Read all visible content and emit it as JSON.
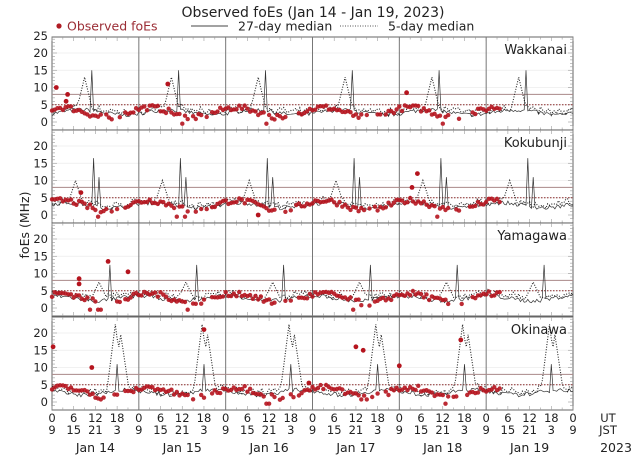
{
  "chart_data": {
    "type": "scatter",
    "title": "Observed foEs (Jan 14 - Jan 19, 2023)",
    "ylabel": "foEs (MHz)",
    "ylim": [
      -2,
      25
    ],
    "yticks": [
      0,
      5,
      10,
      15,
      20,
      25
    ],
    "legend": {
      "placement": "top",
      "entries": [
        {
          "label": "Observed foEs",
          "style": "red-dots"
        },
        {
          "label": "27-day median",
          "style": "solid-line"
        },
        {
          "label": "5-day median",
          "style": "dotted-line"
        }
      ]
    },
    "reference_lines": {
      "solid": 8,
      "dotted": 5
    },
    "x_ticks_ut": [
      "0",
      "6",
      "12",
      "18",
      "0",
      "6",
      "12",
      "18",
      "0",
      "6",
      "12",
      "18",
      "0",
      "6",
      "12",
      "18",
      "0",
      "6",
      "12",
      "18",
      "0",
      "6",
      "12",
      "18",
      "0"
    ],
    "x_ticks_jst": [
      "9",
      "15",
      "21",
      "3",
      "9",
      "15",
      "21",
      "3",
      "9",
      "15",
      "21",
      "3",
      "9",
      "15",
      "21",
      "3",
      "9",
      "15",
      "21",
      "3",
      "9",
      "15",
      "21",
      "3",
      "9"
    ],
    "x_row_labels": {
      "ut": "UT",
      "jst": "JST"
    },
    "days": [
      "Jan 14",
      "Jan 15",
      "Jan 16",
      "Jan 17",
      "Jan 18",
      "Jan 19"
    ],
    "year": "2023",
    "stations": [
      {
        "name": "Wakkanai",
        "show_y_top": true,
        "spike_hours": [
          [
            11,
            15,
            "solid"
          ],
          [
            9,
            11,
            "dotted"
          ]
        ],
        "observed_outliers": [
          [
            1.2,
            10
          ],
          [
            32,
            11
          ],
          [
            4.3,
            8
          ],
          [
            3.9,
            6
          ],
          [
            98,
            8.5
          ]
        ]
      },
      {
        "name": "Kokubunji",
        "show_y_top": false,
        "spike_hours": [
          [
            11.5,
            16.5,
            "solid"
          ],
          [
            13,
            11,
            "solid"
          ],
          [
            6.5,
            8,
            "dotted"
          ]
        ],
        "observed_outliers": [
          [
            8,
            6.5
          ],
          [
            101,
            12
          ],
          [
            99.5,
            8
          ],
          [
            57,
            0
          ]
        ]
      },
      {
        "name": "Yamagawa",
        "show_y_top": false,
        "spike_hours": [
          [
            16,
            12.5,
            "solid"
          ],
          [
            13,
            5.5,
            "dotted"
          ]
        ],
        "observed_outliers": [
          [
            15.5,
            13.5
          ],
          [
            21,
            10.5
          ],
          [
            7.5,
            8.5
          ],
          [
            7.5,
            7
          ]
        ]
      },
      {
        "name": "Okinawa",
        "show_y_top": false,
        "spike_hours": [
          [
            17.5,
            20.5,
            "dotted"
          ],
          [
            19,
            17.5,
            "dotted"
          ],
          [
            18,
            11,
            "solid"
          ]
        ],
        "observed_outliers": [
          [
            0.3,
            16
          ],
          [
            11,
            10
          ],
          [
            42,
            21
          ],
          [
            84,
            16
          ],
          [
            86,
            15
          ],
          [
            96,
            10.5
          ],
          [
            113,
            18
          ],
          [
            71,
            5.5
          ]
        ]
      }
    ],
    "observed_days_available": 5
  }
}
